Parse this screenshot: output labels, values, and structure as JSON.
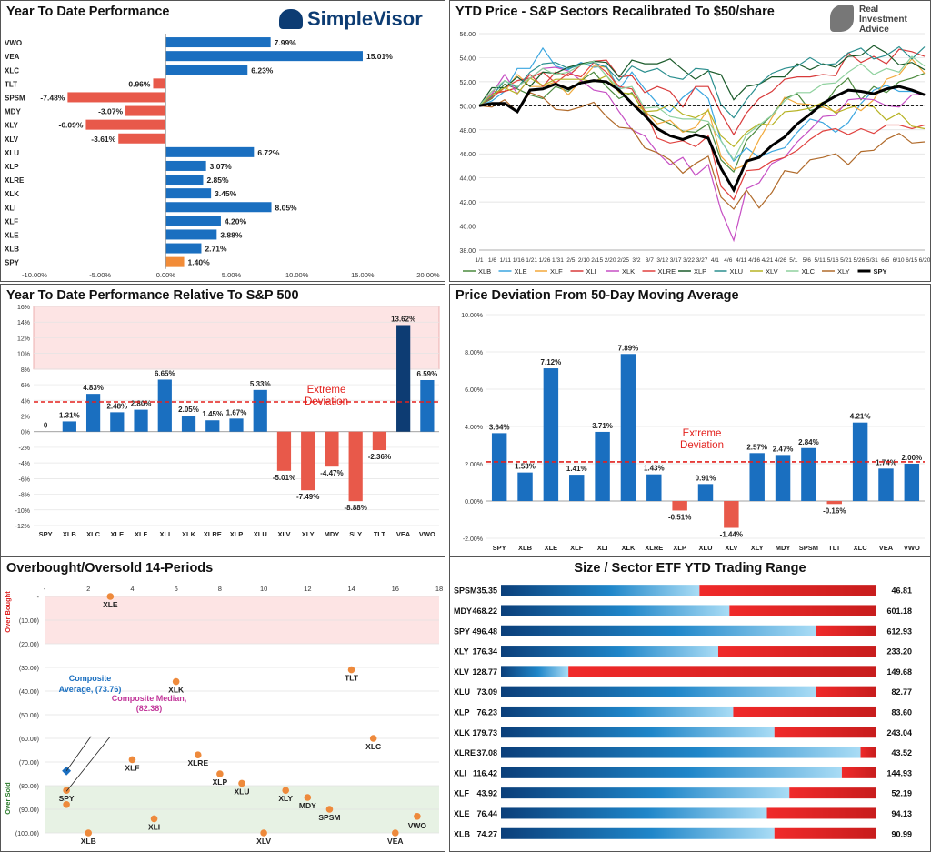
{
  "branding": {
    "simplevisor": "SimpleVisor",
    "ria_line1": "Real",
    "ria_line2": "Investment",
    "ria_line3": "Advice"
  },
  "colors": {
    "blue": "#1a6fc0",
    "red": "#e8594a",
    "orange": "#f28c38",
    "pink_band": "#fde4e4",
    "green_band": "#e7f2e4",
    "dashed": "#e3211d",
    "navy": "#0d3c73"
  },
  "chart_data": [
    {
      "id": "ytd",
      "type": "bar",
      "title": "Year To Date Performance",
      "orientation": "horizontal",
      "categories": [
        "VWO",
        "VEA",
        "XLC",
        "TLT",
        "SPSM",
        "MDY",
        "XLY",
        "XLV",
        "XLU",
        "XLP",
        "XLRE",
        "XLK",
        "XLI",
        "XLF",
        "XLE",
        "XLB",
        "SPY"
      ],
      "values": [
        7.99,
        15.01,
        6.23,
        -0.96,
        -7.48,
        -3.07,
        -6.09,
        -3.61,
        6.72,
        3.07,
        2.85,
        3.45,
        8.05,
        4.2,
        3.88,
        2.71,
        1.4
      ],
      "labels": [
        "7.99%",
        "15.01%",
        "6.23%",
        "-0.96%",
        "-7.48%",
        "-3.07%",
        "-6.09%",
        "-3.61%",
        "6.72%",
        "3.07%",
        "2.85%",
        "3.45%",
        "8.05%",
        "4.20%",
        "3.88%",
        "2.71%",
        "1.40%"
      ],
      "highlight": "SPY",
      "xlim": [
        -10,
        20
      ],
      "xticks": [
        "-10.00%",
        "-5.00%",
        "0.00%",
        "5.00%",
        "10.00%",
        "15.00%",
        "20.00%"
      ]
    },
    {
      "id": "price",
      "type": "line",
      "title": "YTD Price - S&P Sectors Recalibrated To $50/share",
      "ylim": [
        38,
        56
      ],
      "yticks": [
        "56.00",
        "54.00",
        "52.00",
        "50.00",
        "48.00",
        "46.00",
        "44.00",
        "42.00",
        "40.00",
        "38.00"
      ],
      "xticks": [
        "1/1",
        "1/6",
        "1/11",
        "1/16",
        "1/21",
        "1/26",
        "1/31",
        "2/5",
        "2/10",
        "2/15",
        "2/20",
        "2/25",
        "3/2",
        "3/7",
        "3/12",
        "3/17",
        "3/22",
        "3/27",
        "4/1",
        "4/6",
        "4/11",
        "4/16",
        "4/21",
        "4/26",
        "5/1",
        "5/6",
        "5/11",
        "5/16",
        "5/21",
        "5/26",
        "5/31",
        "6/5",
        "6/10",
        "6/15",
        "6/20"
      ],
      "reference": 50,
      "series": [
        {
          "name": "XLB",
          "color": "#4b8a3e",
          "values": [
            50,
            50.6,
            51.8,
            51.4,
            50.9,
            50.6,
            51.6,
            51.2,
            52.1,
            52.8,
            51.6,
            50.6,
            51.1,
            49.4,
            49,
            48.5,
            47.9,
            47.8,
            48.5,
            45.5,
            44.5,
            47.1,
            48.2,
            49.2,
            50.6,
            51,
            49.6,
            49.9,
            51.4,
            52.3,
            50.5,
            51.6,
            51.1,
            52,
            52.3,
            52.7
          ]
        },
        {
          "name": "XLE",
          "color": "#3aa6e0",
          "values": [
            50,
            50.4,
            51.2,
            53.1,
            53.1,
            54.8,
            53.3,
            53,
            53.6,
            53.2,
            53.3,
            51.4,
            52.8,
            51.4,
            50.2,
            49.5,
            50.7,
            51.5,
            50.6,
            47.1,
            45.4,
            46.5,
            45.7,
            46.2,
            46.5,
            47.8,
            48.9,
            48.6,
            47.8,
            48.6,
            50.2,
            51.3,
            51.7,
            51.2,
            51.2,
            50.9
          ]
        },
        {
          "name": "XLF",
          "color": "#f2a93a",
          "values": [
            50,
            51.2,
            51.2,
            52.6,
            51.6,
            51.6,
            52,
            50.9,
            52.1,
            53.3,
            53.2,
            51.2,
            50.2,
            49.6,
            48.5,
            48.8,
            47.8,
            48.2,
            49.7,
            45.8,
            44.7,
            45.1,
            47.2,
            49,
            50.7,
            50.2,
            50.1,
            49.9,
            49.5,
            50.2,
            49.6,
            50.5,
            52.2,
            52.6,
            53.9,
            52.7
          ]
        },
        {
          "name": "XLI",
          "color": "#d83a3a",
          "values": [
            50,
            51,
            51.2,
            51.5,
            52.6,
            51.6,
            52.8,
            52.5,
            53.4,
            53.7,
            53.8,
            52.4,
            52.5,
            51.1,
            51.6,
            51.2,
            49.9,
            51.6,
            51.6,
            49.4,
            47.6,
            49.4,
            50.6,
            51.2,
            52.2,
            52.4,
            52.4,
            52.6,
            52.5,
            54.4,
            53.6,
            54.1,
            53.5,
            54.7,
            54.5,
            54.1
          ]
        },
        {
          "name": "XLK",
          "color": "#c64fc4",
          "values": [
            50,
            51,
            52.6,
            51,
            52.3,
            53.1,
            53.2,
            52.9,
            52.1,
            51.3,
            51.1,
            49.5,
            48,
            47.5,
            46.1,
            45.1,
            45.7,
            44.2,
            45.1,
            41.3,
            38.8,
            43.1,
            43.6,
            45.2,
            45.7,
            47,
            48,
            49.1,
            49.2,
            50.5,
            50.6,
            50.5,
            50,
            49.9,
            50.9,
            51
          ]
        },
        {
          "name": "XLRE",
          "color": "#e0413e",
          "values": [
            50,
            50.7,
            51.5,
            52.1,
            52.3,
            52.8,
            51.9,
            52.7,
            52.4,
            53.6,
            52.8,
            51.6,
            51.4,
            49.6,
            47.3,
            46.9,
            47.1,
            46.6,
            47.5,
            43.3,
            42.2,
            44.6,
            44.7,
            45.4,
            45.7,
            46.3,
            47.2,
            47.9,
            48.1,
            47.6,
            48.1,
            47.7,
            48.4,
            48.4,
            48.1,
            48.4
          ]
        },
        {
          "name": "XLP",
          "color": "#1a5a2a",
          "values": [
            50,
            51.5,
            51.5,
            52.4,
            51.6,
            52.8,
            52.7,
            53.2,
            53.5,
            53.7,
            53.6,
            52.4,
            53.8,
            53.5,
            53.5,
            53.9,
            53,
            52.2,
            52.9,
            52.6,
            50.5,
            51.6,
            51.8,
            52.4,
            52.4,
            53.5,
            53,
            53.5,
            53.2,
            54.1,
            54.2,
            55,
            54.4,
            53.4,
            53.6,
            53
          ]
        },
        {
          "name": "XLU",
          "color": "#2b8f8f",
          "values": [
            50,
            50.8,
            52.1,
            51.5,
            52.8,
            53.5,
            53.6,
            53.1,
            53.4,
            53.6,
            53.2,
            52.1,
            53.3,
            52.8,
            53.1,
            52.4,
            52.2,
            53.1,
            53,
            50.1,
            49,
            50.5,
            51.8,
            52.7,
            53.1,
            53.3,
            54,
            53.4,
            53.5,
            54.4,
            54.8,
            53.9,
            54.2,
            54.9,
            53.9,
            54.9
          ]
        },
        {
          "name": "XLV",
          "color": "#b7b324",
          "values": [
            50,
            50.9,
            51.5,
            51,
            52.3,
            51.7,
            52.2,
            52.2,
            52.2,
            52,
            52.5,
            51.1,
            51,
            49.5,
            49.6,
            50.1,
            49.3,
            49,
            49.6,
            47.5,
            46.6,
            47.8,
            48.5,
            48.4,
            49.5,
            49.6,
            49.8,
            50.3,
            49.4,
            49.8,
            50.1,
            49.9,
            48.8,
            49.4,
            48.3,
            48.1
          ]
        },
        {
          "name": "XLC",
          "color": "#8fd19e",
          "values": [
            50,
            51.2,
            52.1,
            51.6,
            52.3,
            53.1,
            52.6,
            52.8,
            53.4,
            53.7,
            52.5,
            51.4,
            51.6,
            49.8,
            49.9,
            49.1,
            48.9,
            48.9,
            48.7,
            47.1,
            45.5,
            47.6,
            48.4,
            49.2,
            50.4,
            51.1,
            51.1,
            51.8,
            51.9,
            52.8,
            53.5,
            52.6,
            53.1,
            52.8,
            54.1,
            53.3
          ]
        },
        {
          "name": "XLY",
          "color": "#b06a2a",
          "values": [
            50,
            49.9,
            50.5,
            49.5,
            51.1,
            50.7,
            49.7,
            49.6,
            49.9,
            50.3,
            49.1,
            48.2,
            48.1,
            46.5,
            46.1,
            45.5,
            44.4,
            45.2,
            45.8,
            42.4,
            41.4,
            43,
            41.5,
            42.8,
            44.6,
            44.4,
            45.5,
            45.7,
            46,
            45.1,
            46.2,
            46.3,
            47.2,
            47.7,
            46.9,
            47
          ]
        },
        {
          "name": "SPY",
          "color": "#000000",
          "bold": true,
          "values": [
            50,
            50.2,
            50.2,
            49.5,
            51.3,
            51.4,
            51.8,
            51.4,
            51.9,
            52.1,
            52,
            51.3,
            50.2,
            49.2,
            48.1,
            47.5,
            47.2,
            47.6,
            47.3,
            44.8,
            43,
            45.4,
            45.7,
            46.7,
            47.4,
            48.5,
            49.3,
            50.2,
            50.8,
            51.3,
            51.2,
            51,
            51.4,
            51.6,
            51.3,
            50.9
          ]
        }
      ]
    },
    {
      "id": "relative",
      "type": "bar",
      "title": "Year To Date Performance Relative To S&P 500",
      "categories": [
        "SPY",
        "XLB",
        "XLC",
        "XLE",
        "XLF",
        "XLI",
        "XLK",
        "XLRE",
        "XLP",
        "XLU",
        "XLV",
        "XLY",
        "MDY",
        "SLY",
        "TLT",
        "VEA",
        "VWO"
      ],
      "values": [
        0,
        1.31,
        4.83,
        2.48,
        2.8,
        6.65,
        2.05,
        1.45,
        1.67,
        5.33,
        -5.01,
        -7.49,
        -4.47,
        -8.88,
        -2.36,
        13.62,
        6.59
      ],
      "labels": [
        "0",
        "1.31%",
        "4.83%",
        "2.48%",
        "2.80%",
        "6.65%",
        "2.05%",
        "1.45%",
        "1.67%",
        "5.33%",
        "-5.01%",
        "-7.49%",
        "-4.47%",
        "-8.88%",
        "-2.36%",
        "13.62%",
        "6.59%"
      ],
      "highlight": "VEA",
      "ylim": [
        -12,
        16
      ],
      "yticks": [
        "16%",
        "14%",
        "12%",
        "10%",
        "8%",
        "6%",
        "4%",
        "2%",
        "0%",
        "-2%",
        "-4%",
        "-6%",
        "-8%",
        "-10%",
        "-12%"
      ],
      "extreme_line": 3.8,
      "band_from": 8,
      "annotation": [
        "Extreme",
        "Deviation"
      ]
    },
    {
      "id": "deviation",
      "type": "bar",
      "title": "Price Deviation From 50-Day Moving Average",
      "categories": [
        "SPY",
        "XLB",
        "XLE",
        "XLF",
        "XLI",
        "XLK",
        "XLRE",
        "XLP",
        "XLU",
        "XLV",
        "XLY",
        "MDY",
        "SPSM",
        "TLT",
        "XLC",
        "VEA",
        "VWO"
      ],
      "values": [
        3.64,
        1.53,
        7.12,
        1.41,
        3.71,
        7.89,
        1.43,
        -0.51,
        0.91,
        -1.44,
        2.57,
        2.47,
        2.84,
        -0.16,
        4.21,
        1.74,
        2.0
      ],
      "labels": [
        "3.64%",
        "1.53%",
        "7.12%",
        "1.41%",
        "3.71%",
        "7.89%",
        "1.43%",
        "-0.51%",
        "0.91%",
        "-1.44%",
        "2.57%",
        "2.47%",
        "2.84%",
        "-0.16%",
        "4.21%",
        "1.74%",
        "2.00%"
      ],
      "ylim": [
        -2,
        10
      ],
      "yticks": [
        "10.00%",
        "8.00%",
        "6.00%",
        "4.00%",
        "2.00%",
        "0.00%",
        "-2.00%"
      ],
      "extreme_line": 2.1,
      "annotation": [
        "Extreme",
        "Deviation"
      ]
    },
    {
      "id": "overbought",
      "type": "scatter",
      "title": "Overbought/Oversold 14-Periods",
      "xlim": [
        0,
        18
      ],
      "xticks": [
        "-",
        "2",
        "4",
        "6",
        "8",
        "10",
        "12",
        "14",
        "16",
        "18"
      ],
      "ylim": [
        0,
        100
      ],
      "yticks": [
        "-",
        "(10.00)",
        "(20.00)",
        "(30.00)",
        "(40.00)",
        "(50.00)",
        "(60.00)",
        "(70.00)",
        "(80.00)",
        "(90.00)",
        "(100.00)"
      ],
      "top_band": [
        0,
        20
      ],
      "bottom_band": [
        80,
        100
      ],
      "top_label": "Over Bought",
      "bottom_label": "Over Sold",
      "points": [
        {
          "name": "XLE",
          "x": 3,
          "y": 0
        },
        {
          "name": "XLK",
          "x": 6,
          "y": 36
        },
        {
          "name": "TLT",
          "x": 14,
          "y": 31
        },
        {
          "name": "XLC",
          "x": 15,
          "y": 60
        },
        {
          "name": "XLF",
          "x": 4,
          "y": 69
        },
        {
          "name": "XLRE",
          "x": 7,
          "y": 67
        },
        {
          "name": "XLP",
          "x": 8,
          "y": 75
        },
        {
          "name": "XLU",
          "x": 9,
          "y": 79
        },
        {
          "name": "XLY",
          "x": 11,
          "y": 82
        },
        {
          "name": "MDY",
          "x": 12,
          "y": 85
        },
        {
          "name": "SPSM",
          "x": 13,
          "y": 90
        },
        {
          "name": "SPY",
          "x": 1,
          "y": 82
        },
        {
          "name": "XLI",
          "x": 5,
          "y": 94
        },
        {
          "name": "XLB",
          "x": 2,
          "y": 100
        },
        {
          "name": "XLV",
          "x": 10,
          "y": 100
        },
        {
          "name": "VEA",
          "x": 16,
          "y": 100
        },
        {
          "name": "VWO",
          "x": 17,
          "y": 93
        },
        {
          "name": "SPY2",
          "x": 1,
          "y": 88
        }
      ],
      "composite_average": {
        "label": [
          "Composite",
          "Average, (73.76)"
        ],
        "x": 1,
        "y": 73.76
      },
      "composite_median": {
        "label": [
          "Composite Median,",
          "(82.38)"
        ],
        "x": 1,
        "y": 82.38
      }
    },
    {
      "id": "range",
      "type": "bar",
      "title": "Size / Sector ETF YTD Trading Range",
      "rows": [
        {
          "name": "SPSM",
          "low": "35.35",
          "high": "46.81",
          "pos": 0.53
        },
        {
          "name": "MDY",
          "low": "468.22",
          "high": "601.18",
          "pos": 0.61
        },
        {
          "name": "SPY",
          "low": "496.48",
          "high": "612.93",
          "pos": 0.84
        },
        {
          "name": "XLY",
          "low": "176.34",
          "high": "233.20",
          "pos": 0.58
        },
        {
          "name": "XLV",
          "low": "128.77",
          "high": "149.68",
          "pos": 0.18
        },
        {
          "name": "XLU",
          "low": "73.09",
          "high": "82.77",
          "pos": 0.84
        },
        {
          "name": "XLP",
          "low": "76.23",
          "high": "83.60",
          "pos": 0.62
        },
        {
          "name": "XLK",
          "low": "179.73",
          "high": "243.04",
          "pos": 0.73
        },
        {
          "name": "XLRE",
          "low": "37.08",
          "high": "43.52",
          "pos": 0.96
        },
        {
          "name": "XLI",
          "low": "116.42",
          "high": "144.93",
          "pos": 0.91
        },
        {
          "name": "XLF",
          "low": "43.92",
          "high": "52.19",
          "pos": 0.77
        },
        {
          "name": "XLE",
          "low": "76.44",
          "high": "94.13",
          "pos": 0.71
        },
        {
          "name": "XLB",
          "low": "74.27",
          "high": "90.99",
          "pos": 0.73
        }
      ]
    }
  ]
}
